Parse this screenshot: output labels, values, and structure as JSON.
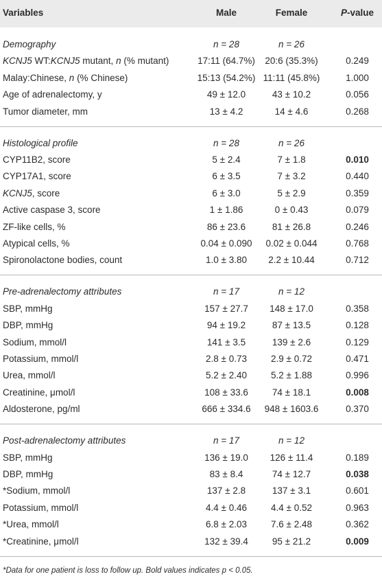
{
  "table": {
    "header": [
      "Variables",
      "Male",
      "Female",
      [
        {
          "text": "P",
          "italic": true
        },
        "-value"
      ]
    ],
    "sections": [
      {
        "title": "Demography",
        "n": [
          "n = 28",
          "n = 26"
        ],
        "rows": [
          [
            [
              {
                "text": "KCNJ5",
                "italic": true
              },
              " WT:",
              {
                "text": "KCNJ5",
                "italic": true
              },
              " mutant, ",
              {
                "text": "n",
                "italic": true
              },
              " (% mutant)"
            ],
            "17:11 (64.7%)",
            "20:6 (35.3%)",
            "0.249"
          ],
          [
            [
              "Malay:Chinese, ",
              {
                "text": "n",
                "italic": true
              },
              " (% Chinese)"
            ],
            "15:13 (54.2%)",
            "11:11 (45.8%)",
            "1.000"
          ],
          [
            "Age of adrenalectomy, y",
            "49 ± 12.0",
            "43 ± 10.2",
            "0.056"
          ],
          [
            "Tumor diameter, mm",
            "13 ± 4.2",
            "14 ± 4.6",
            "0.268"
          ]
        ]
      },
      {
        "title": "Histological profile",
        "n": [
          "n = 28",
          "n = 26"
        ],
        "rows": [
          [
            "CYP11B2, score",
            "5 ± 2.4",
            "7 ± 1.8",
            {
              "text": "0.010",
              "bold": true
            }
          ],
          [
            "CYP17A1, score",
            "6 ± 3.5",
            "7 ± 3.2",
            "0.440"
          ],
          [
            [
              {
                "text": "KCNJ5",
                "italic": true
              },
              ", score"
            ],
            "6 ± 3.0",
            "5 ± 2.9",
            "0.359"
          ],
          [
            "Active caspase 3, score",
            "1 ± 1.86",
            "0 ± 0.43",
            "0.079"
          ],
          [
            "ZF-like cells, %",
            "86 ± 23.6",
            "81 ± 26.8",
            "0.246"
          ],
          [
            "Atypical cells, %",
            "0.04 ± 0.090",
            "0.02 ± 0.044",
            "0.768"
          ],
          [
            "Spironolactone bodies, count",
            "1.0 ± 3.80",
            "2.2 ± 10.44",
            "0.712"
          ]
        ]
      },
      {
        "title": "Pre-adrenalectomy attributes",
        "n": [
          "n = 17",
          "n = 12"
        ],
        "rows": [
          [
            "SBP, mmHg",
            "157 ± 27.7",
            "148 ± 17.0",
            "0.358"
          ],
          [
            "DBP, mmHg",
            "94 ± 19.2",
            "87 ± 13.5",
            "0.128"
          ],
          [
            "Sodium, mmol/l",
            "141 ± 3.5",
            "139 ± 2.6",
            "0.129"
          ],
          [
            "Potassium, mmol/l",
            "2.8 ± 0.73",
            "2.9 ± 0.72",
            "0.471"
          ],
          [
            "Urea, mmol/l",
            "5.2 ± 2.40",
            "5.2 ± 1.88",
            "0.996"
          ],
          [
            "Creatinine, μmol/l",
            "108 ± 33.6",
            "74 ± 18.1",
            {
              "text": "0.008",
              "bold": true
            }
          ],
          [
            "Aldosterone, pg/ml",
            "666 ± 334.6",
            "948 ± 1603.6",
            "0.370"
          ]
        ]
      },
      {
        "title": "Post-adrenalectomy attributes",
        "n": [
          "n = 17",
          "n = 12"
        ],
        "rows": [
          [
            "SBP, mmHg",
            "136 ± 19.0",
            "126 ± 11.4",
            "0.189"
          ],
          [
            "DBP, mmHg",
            "83 ± 8.4",
            "74 ± 12.7",
            {
              "text": "0.038",
              "bold": true
            }
          ],
          [
            "*Sodium, mmol/l",
            "137 ± 2.8",
            "137 ± 3.1",
            "0.601"
          ],
          [
            "Potassium, mmol/l",
            "4.4 ± 0.46",
            "4.4 ± 0.52",
            "0.963"
          ],
          [
            "*Urea, mmol/l",
            "6.8 ± 2.03",
            "7.6 ± 2.48",
            "0.362"
          ],
          [
            "*Creatinine, μmol/l",
            "132 ± 39.4",
            "95 ± 21.2",
            {
              "text": "0.009",
              "bold": true
            }
          ]
        ]
      }
    ],
    "footnote": "*Data for one patient is loss to follow up. Bold values indicates p < 0.05."
  }
}
